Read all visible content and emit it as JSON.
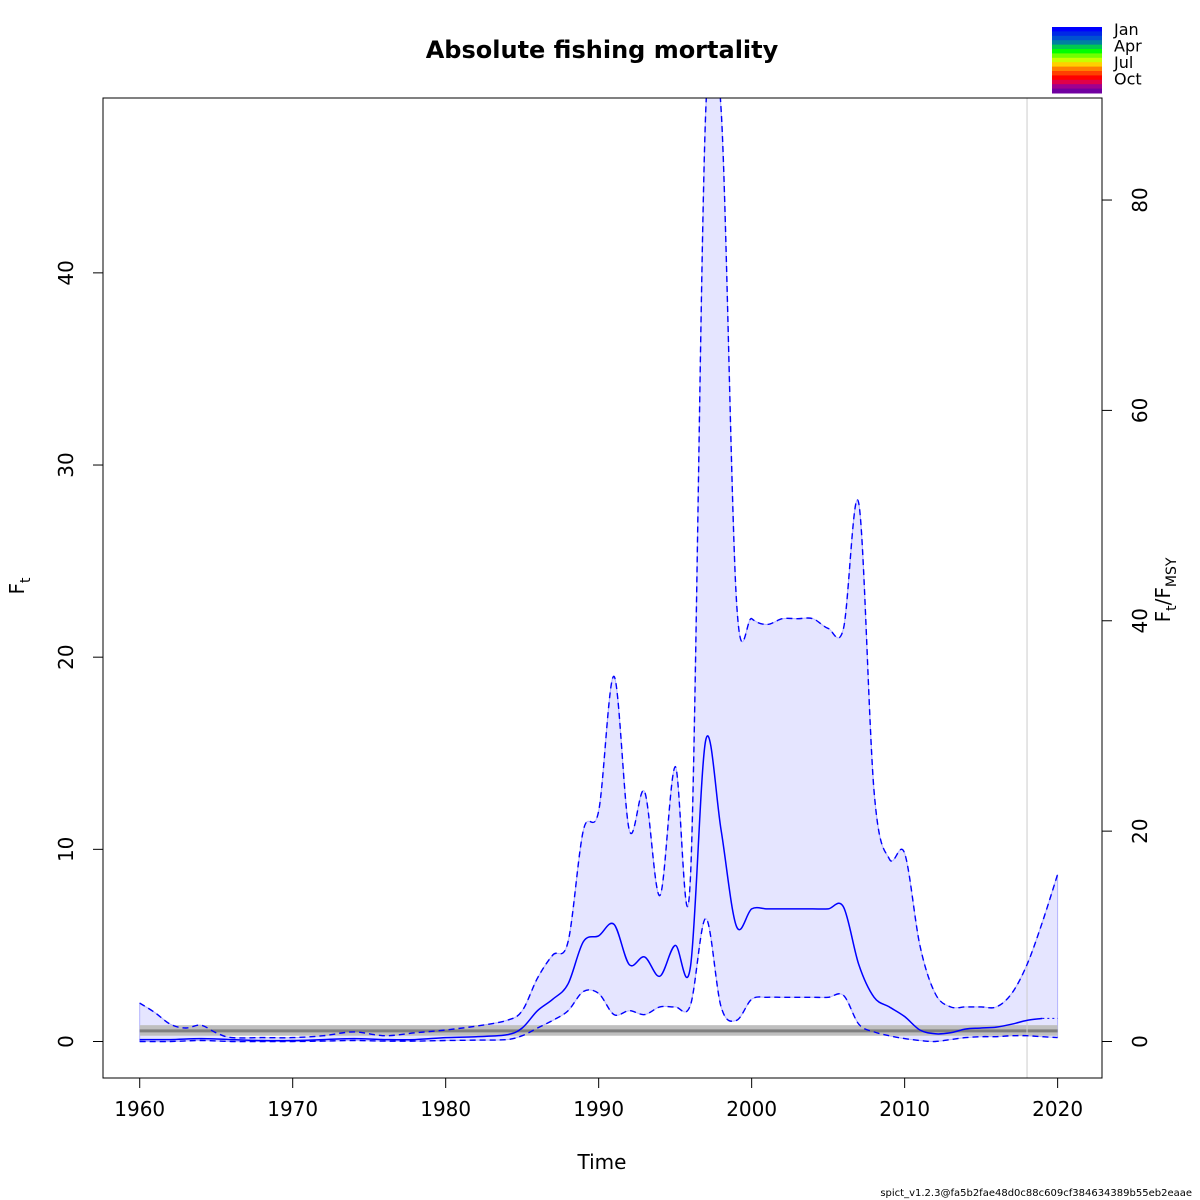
{
  "chart_data": {
    "type": "line",
    "title": "Absolute fishing mortality",
    "xlabel": "Time",
    "ylabel": "F",
    "ylabel_sub": "t",
    "ylabel_right": "F",
    "ylabel_right_sub1": "t",
    "ylabel_right_sep": "/F",
    "ylabel_right_sub2": "MSY",
    "xlim": [
      1957.6,
      2022.9
    ],
    "ylim": [
      -1.9,
      49.1
    ],
    "ylim_right": [
      -3.47,
      89.7
    ],
    "x_ticks": [
      1960,
      1970,
      1980,
      1990,
      2000,
      2010,
      2020
    ],
    "y_ticks": [
      0,
      10,
      20,
      30,
      40
    ],
    "y_ticks_right": [
      0,
      20,
      40,
      60,
      80
    ],
    "grid": false,
    "vertical_marker_x": 2018,
    "fmsy": {
      "value": 0.55,
      "ci": [
        0.3,
        0.85
      ]
    },
    "colors": {
      "estimate": "#0000ff",
      "ci_fill": "#e5e5ff",
      "ci_edge": "#b4b4ff",
      "fmsy_band": "#bfbfbf",
      "fmsy_line": "#7f7f7f",
      "marker": "#cccccc"
    },
    "series": [
      {
        "role": "estimate",
        "x": [
          1960,
          1962,
          1964,
          1966,
          1968,
          1970,
          1972,
          1974,
          1976,
          1978,
          1980,
          1982,
          1984,
          1985,
          1986,
          1987,
          1988,
          1989,
          1990,
          1991,
          1992,
          1993,
          1994,
          1995,
          1996,
          1997,
          1998,
          1999,
          2000,
          2001,
          2002,
          2003,
          2004,
          2005,
          2006,
          2007,
          2008,
          2009,
          2010,
          2011,
          2012,
          2013,
          2014,
          2015,
          2016,
          2017,
          2018,
          2019
        ],
        "y": [
          0.1,
          0.1,
          0.15,
          0.1,
          0.05,
          0.05,
          0.1,
          0.15,
          0.1,
          0.1,
          0.2,
          0.25,
          0.35,
          0.7,
          1.6,
          2.2,
          3.0,
          5.2,
          5.5,
          6.1,
          4.0,
          4.4,
          3.4,
          5.0,
          3.9,
          15.7,
          11.0,
          6.0,
          6.9,
          6.9,
          6.9,
          6.9,
          6.9,
          6.9,
          7.0,
          4.0,
          2.3,
          1.8,
          1.3,
          0.6,
          0.4,
          0.45,
          0.65,
          0.7,
          0.75,
          0.9,
          1.1,
          1.2
        ]
      },
      {
        "role": "lower",
        "x": [
          1960,
          1962,
          1964,
          1966,
          1968,
          1970,
          1972,
          1974,
          1976,
          1978,
          1980,
          1982,
          1984,
          1985,
          1986,
          1987,
          1988,
          1989,
          1990,
          1991,
          1992,
          1993,
          1994,
          1995,
          1996,
          1997,
          1998,
          1999,
          2000,
          2001,
          2002,
          2003,
          2004,
          2005,
          2006,
          2007,
          2008,
          2009,
          2010,
          2011,
          2012,
          2013,
          2014,
          2015,
          2016,
          2017,
          2018,
          2019,
          2020
        ],
        "y": [
          0.0,
          0.0,
          0.05,
          0.0,
          0.0,
          0.0,
          0.02,
          0.05,
          0.02,
          0.02,
          0.05,
          0.07,
          0.1,
          0.3,
          0.7,
          1.1,
          1.6,
          2.6,
          2.5,
          1.4,
          1.6,
          1.4,
          1.8,
          1.8,
          1.9,
          6.4,
          1.8,
          1.1,
          2.2,
          2.3,
          2.3,
          2.3,
          2.3,
          2.3,
          2.4,
          0.9,
          0.5,
          0.3,
          0.15,
          0.05,
          0.0,
          0.1,
          0.2,
          0.25,
          0.25,
          0.3,
          0.3,
          0.25,
          0.2
        ]
      },
      {
        "role": "upper",
        "x": [
          1960,
          1961,
          1962,
          1963,
          1964,
          1965,
          1966,
          1968,
          1970,
          1972,
          1974,
          1976,
          1978,
          1980,
          1982,
          1984,
          1985,
          1986,
          1987,
          1988,
          1989,
          1990,
          1991,
          1992,
          1993,
          1994,
          1995,
          1996,
          1997,
          1998,
          1999,
          2000,
          2001,
          2002,
          2003,
          2004,
          2005,
          2006,
          2007,
          2008,
          2009,
          2010,
          2011,
          2012,
          2013,
          2014,
          2015,
          2016,
          2017,
          2018,
          2019,
          2020
        ],
        "y": [
          2.0,
          1.5,
          0.9,
          0.7,
          0.85,
          0.45,
          0.2,
          0.2,
          0.2,
          0.3,
          0.5,
          0.3,
          0.45,
          0.6,
          0.8,
          1.1,
          1.6,
          3.3,
          4.5,
          5.2,
          11.0,
          12.0,
          19.0,
          11.0,
          13.0,
          7.6,
          14.3,
          8.6,
          48.5,
          48.5,
          23.0,
          22.0,
          21.7,
          22.0,
          22.0,
          22.0,
          21.5,
          21.5,
          28.0,
          13.0,
          9.5,
          9.8,
          5.0,
          2.5,
          1.8,
          1.8,
          1.8,
          1.8,
          2.5,
          4.0,
          6.2,
          8.7
        ]
      }
    ]
  },
  "legend": {
    "labels": [
      "Jan",
      "Apr",
      "Jul",
      "Oct"
    ],
    "colors": [
      "#0000ff",
      "#0028e6",
      "#0050d2",
      "#0080a0",
      "#00c850",
      "#00ff00",
      "#70ff00",
      "#c8ff00",
      "#ffd000",
      "#ff8000",
      "#ff4000",
      "#ff0000",
      "#e0004a",
      "#a00090",
      "#7000a0"
    ]
  },
  "footer": "spict_v1.2.3@fa5b2fae48d0c88c609cf384634389b55eb2eaae"
}
